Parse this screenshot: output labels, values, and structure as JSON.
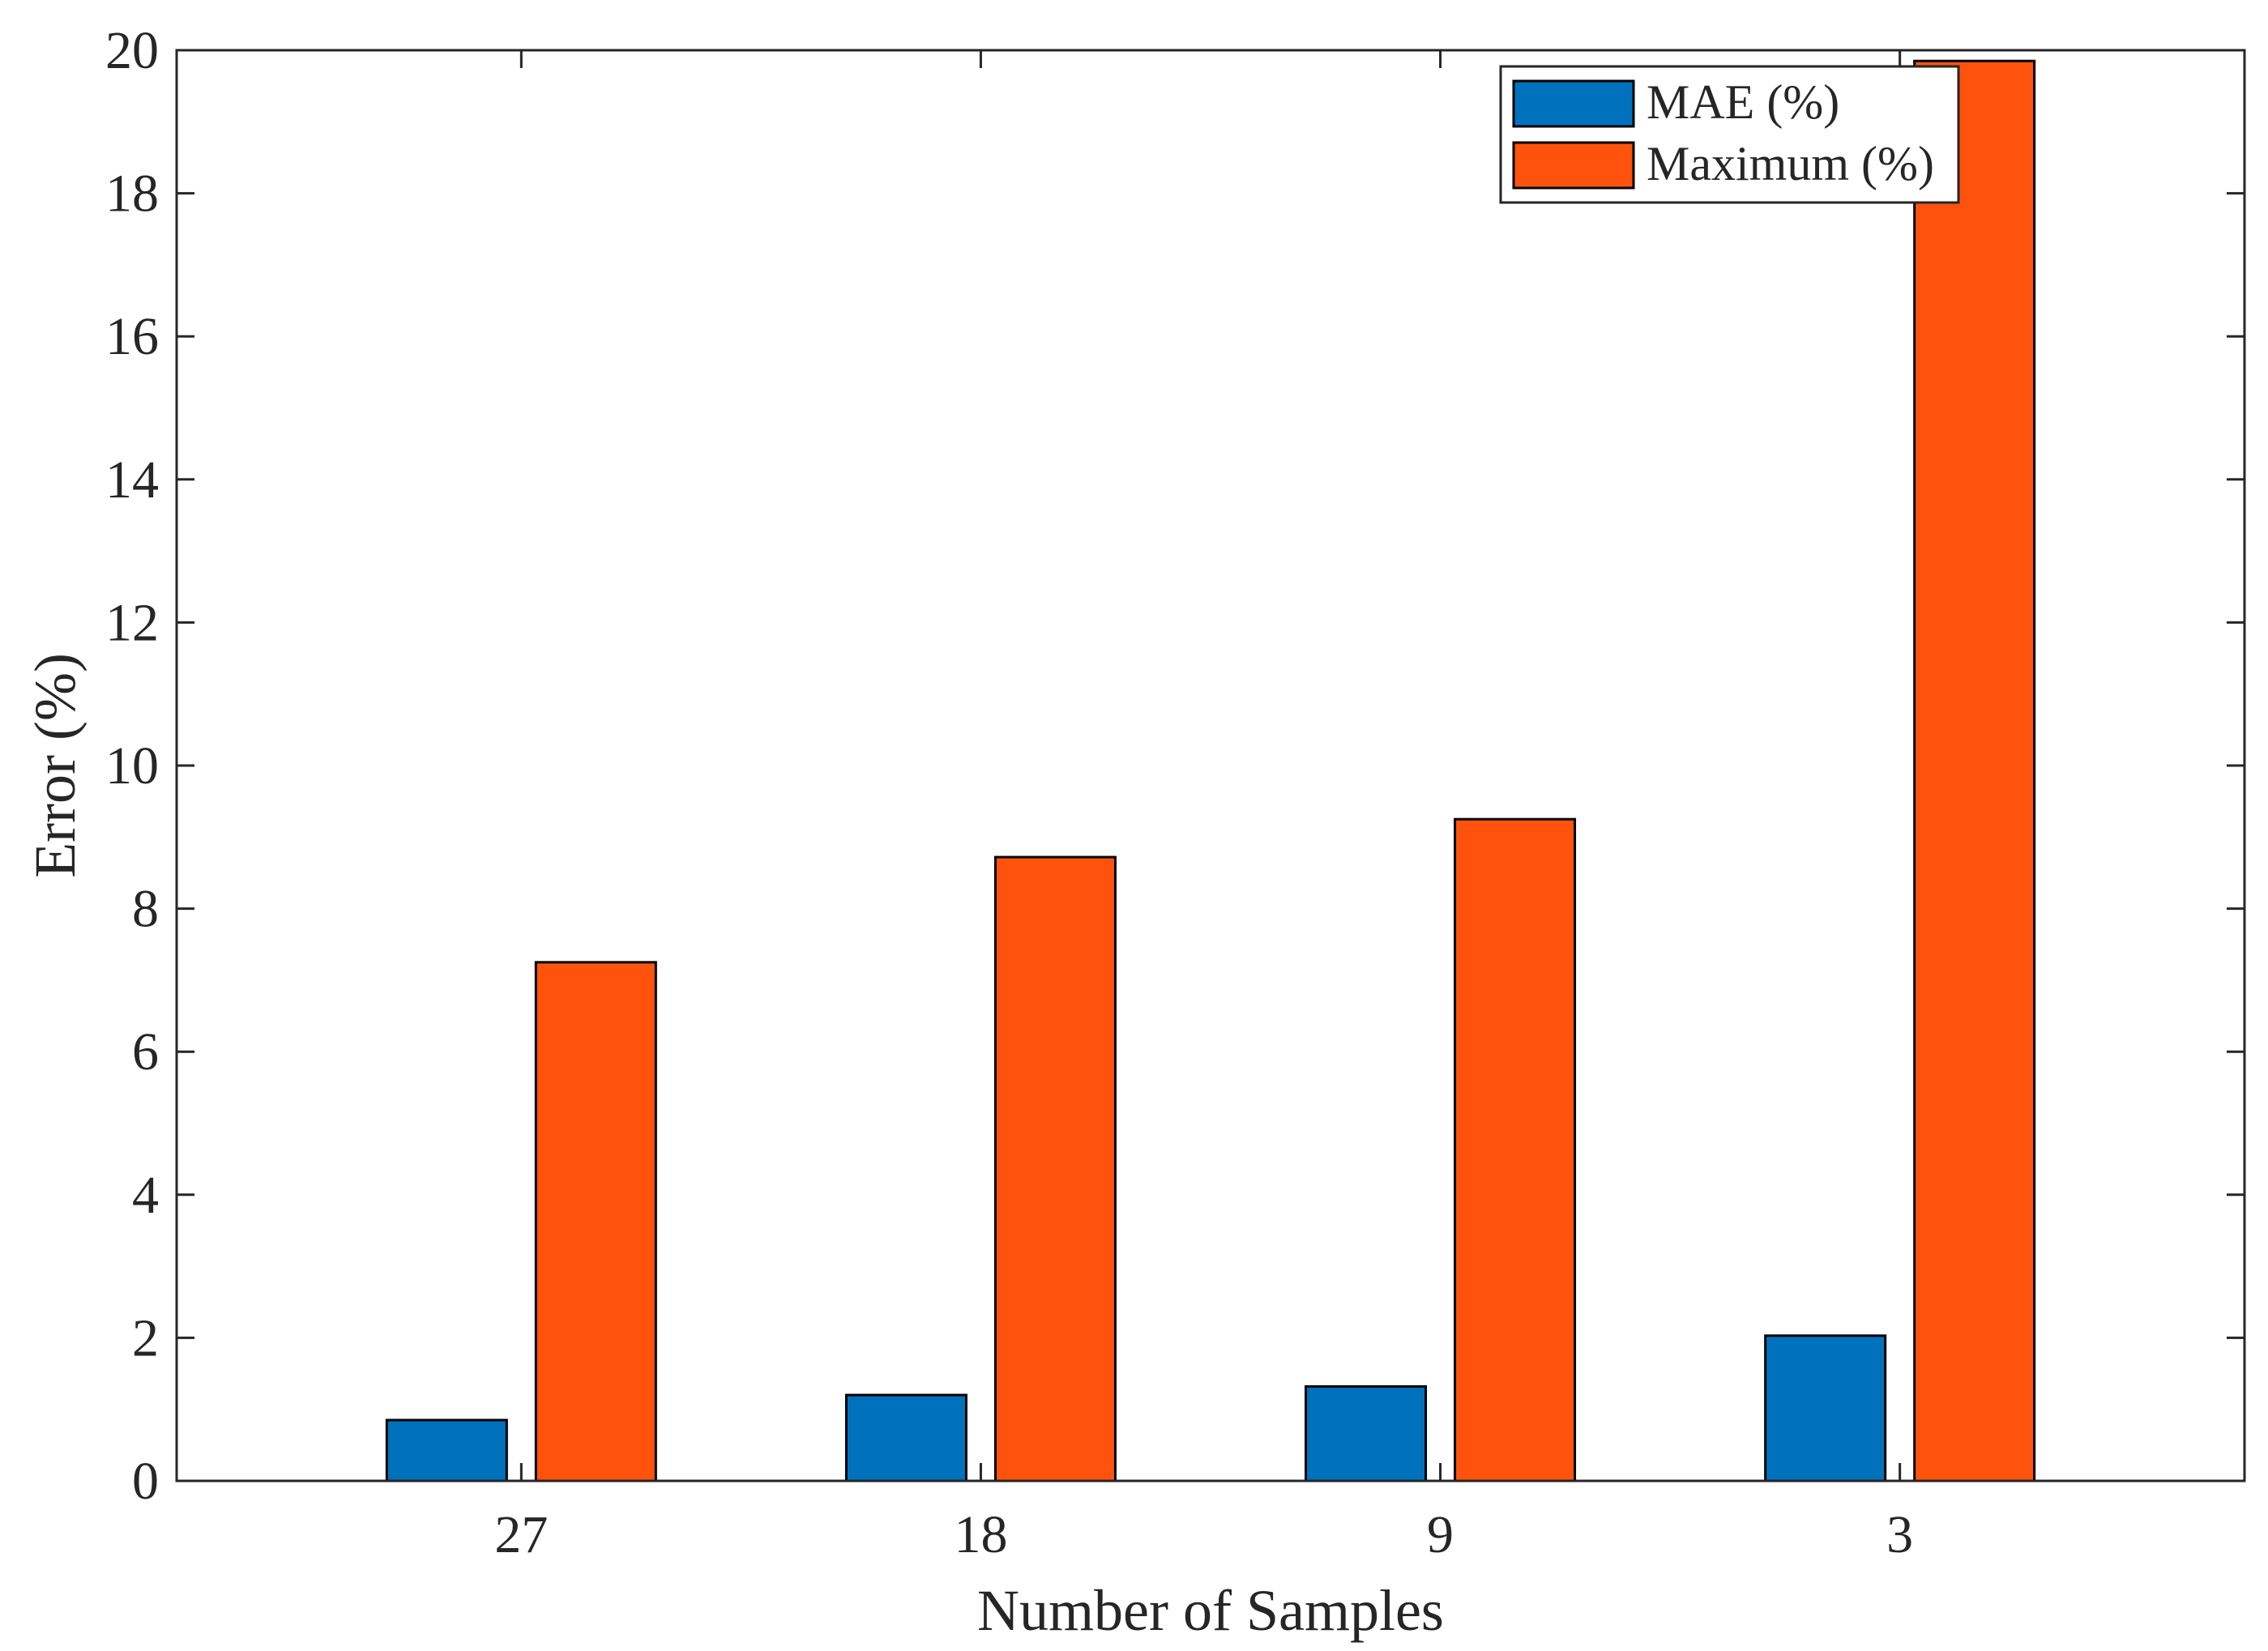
{
  "chart_data": {
    "type": "bar",
    "title": "",
    "xlabel": "Number of Samples",
    "ylabel": "Error (%)",
    "categories": [
      "27",
      "18",
      "9",
      "3"
    ],
    "ylim": [
      0,
      20
    ],
    "yticks": [
      0,
      2,
      4,
      6,
      8,
      10,
      12,
      14,
      16,
      18,
      20
    ],
    "grid": false,
    "legend_position": "top-right",
    "series": [
      {
        "name": "MAE (%)",
        "color": "#0072BD",
        "values": [
          0.85,
          1.2,
          1.32,
          2.03
        ]
      },
      {
        "name": "Maximum (%)",
        "color": "#FF530D",
        "values": [
          7.25,
          8.72,
          9.25,
          19.85
        ]
      }
    ]
  }
}
